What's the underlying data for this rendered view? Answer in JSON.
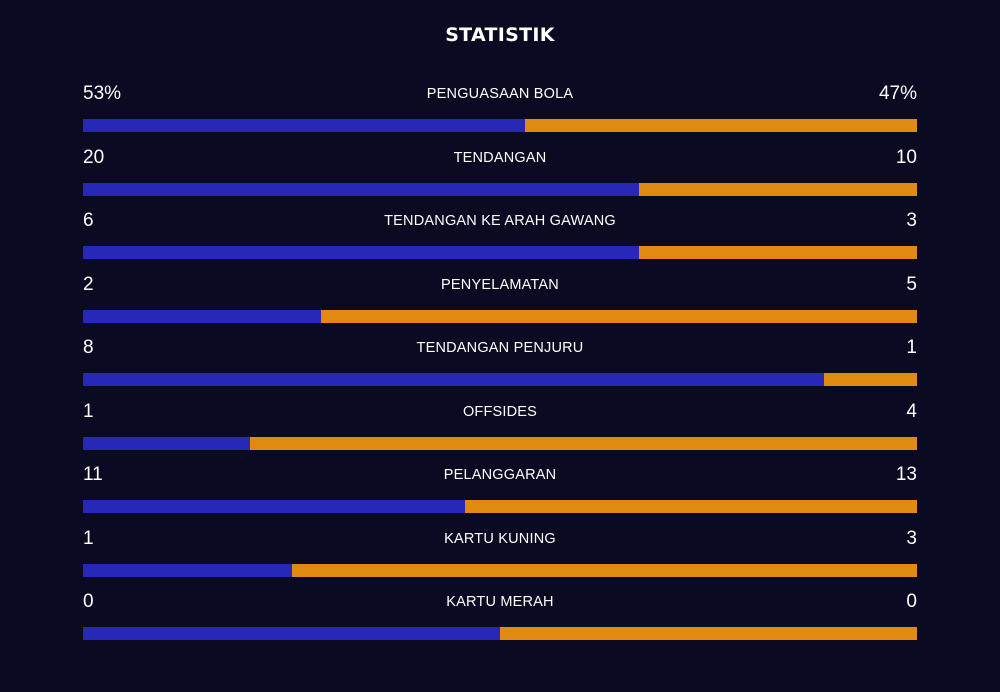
{
  "title": "STATISTIK",
  "colors": {
    "background": "#0a0a22",
    "home": "#2727b8",
    "away": "#e08a12"
  },
  "stats": [
    {
      "label": "PENGUASAAN BOLA",
      "home": "53%",
      "away": "47%",
      "home_share": 0.53
    },
    {
      "label": "TENDANGAN",
      "home": "20",
      "away": "10",
      "home_share": 0.6667
    },
    {
      "label": "TENDANGAN KE ARAH GAWANG",
      "home": "6",
      "away": "3",
      "home_share": 0.6667
    },
    {
      "label": "PENYELAMATAN",
      "home": "2",
      "away": "5",
      "home_share": 0.2857
    },
    {
      "label": "TENDANGAN PENJURU",
      "home": "8",
      "away": "1",
      "home_share": 0.8889
    },
    {
      "label": "OFFSIDES",
      "home": "1",
      "away": "4",
      "home_share": 0.2
    },
    {
      "label": "PELANGGARAN",
      "home": "11",
      "away": "13",
      "home_share": 0.4583
    },
    {
      "label": "KARTU KUNING",
      "home": "1",
      "away": "3",
      "home_share": 0.25
    },
    {
      "label": "KARTU MERAH",
      "home": "0",
      "away": "0",
      "home_share": 0.5
    }
  ]
}
